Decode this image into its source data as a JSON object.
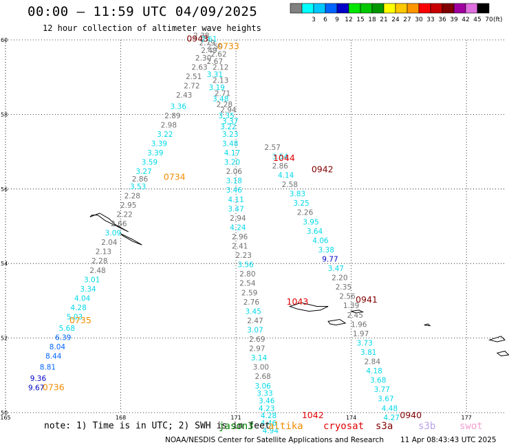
{
  "header": {
    "title": "00:00 – 11:59 UTC 04/09/2025",
    "subtitle": "12 hour collection of altimeter wave heights"
  },
  "colorbar": {
    "unit": "(ft)",
    "bins": [
      {
        "label": "",
        "color": "#808080"
      },
      {
        "label": "3",
        "color": "#00ffff"
      },
      {
        "label": "6",
        "color": "#00c8ff"
      },
      {
        "label": "9",
        "color": "#0064ff"
      },
      {
        "label": "12",
        "color": "#0000c8"
      },
      {
        "label": "15",
        "color": "#00e600"
      },
      {
        "label": "18",
        "color": "#00c800"
      },
      {
        "label": "21",
        "color": "#009600"
      },
      {
        "label": "24",
        "color": "#ffff00"
      },
      {
        "label": "27",
        "color": "#ffc800"
      },
      {
        "label": "30",
        "color": "#ff9600"
      },
      {
        "label": "33",
        "color": "#ff0000"
      },
      {
        "label": "36",
        "color": "#c80000"
      },
      {
        "label": "39",
        "color": "#800000"
      },
      {
        "label": "42",
        "color": "#a000a0"
      },
      {
        "label": "45",
        "color": "#e070e0"
      },
      {
        "label": "70",
        "color": "#000000"
      }
    ]
  },
  "map": {
    "lon_range": [
      165,
      178
    ],
    "lat_range": [
      50,
      60
    ],
    "lon_ticks": [
      "165",
      "168",
      "171",
      "174",
      "177"
    ],
    "lat_ticks": [
      "60",
      "58",
      "56",
      "54",
      "52",
      "50"
    ]
  },
  "colors": {
    "gray": "#707070",
    "cyan": "#00d8e8",
    "blue": "#0064ff",
    "navy": "#0000c8",
    "orange": "#f08c00",
    "darkred": "#800000",
    "red": "#e00000"
  },
  "tracks": [
    {
      "id": "track-0734",
      "points": [
        {
          "lon": 165.8,
          "lat": 50.6,
          "v": "9.67",
          "c": "navy"
        },
        {
          "lon": 165.85,
          "lat": 50.85,
          "v": "9.36",
          "c": "navy"
        },
        {
          "lon": 166.1,
          "lat": 51.15,
          "v": "8.81",
          "c": "blue"
        },
        {
          "lon": 166.25,
          "lat": 51.45,
          "v": "8.44",
          "c": "blue"
        },
        {
          "lon": 166.35,
          "lat": 51.7,
          "v": "8.04",
          "c": "blue"
        },
        {
          "lon": 166.5,
          "lat": 51.95,
          "v": "6.39",
          "c": "blue"
        },
        {
          "lon": 166.6,
          "lat": 52.2,
          "v": "5.68",
          "c": "cyan"
        },
        {
          "lon": 166.8,
          "lat": 52.5,
          "v": "5.03",
          "c": "cyan"
        },
        {
          "lon": 166.9,
          "lat": 52.75,
          "v": "4.28",
          "c": "cyan"
        },
        {
          "lon": 167.0,
          "lat": 53.0,
          "v": "4.04",
          "c": "cyan"
        },
        {
          "lon": 167.15,
          "lat": 53.25,
          "v": "3.34",
          "c": "cyan"
        },
        {
          "lon": 167.25,
          "lat": 53.5,
          "v": "3.01",
          "c": "cyan"
        },
        {
          "lon": 167.4,
          "lat": 53.75,
          "v": "2.48",
          "c": "gray"
        },
        {
          "lon": 167.45,
          "lat": 54.0,
          "v": "2.28",
          "c": "gray"
        },
        {
          "lon": 167.55,
          "lat": 54.25,
          "v": "2.13",
          "c": "gray"
        },
        {
          "lon": 167.7,
          "lat": 54.5,
          "v": "2.04",
          "c": "gray"
        },
        {
          "lon": 167.8,
          "lat": 54.75,
          "v": "3.09",
          "c": "cyan"
        },
        {
          "lon": 167.95,
          "lat": 55.0,
          "v": "2.66",
          "c": "gray"
        },
        {
          "lon": 168.1,
          "lat": 55.25,
          "v": "2.22",
          "c": "gray"
        },
        {
          "lon": 168.2,
          "lat": 55.5,
          "v": "2.95",
          "c": "gray"
        },
        {
          "lon": 168.3,
          "lat": 55.75,
          "v": "2.28",
          "c": "gray"
        },
        {
          "lon": 168.45,
          "lat": 56.0,
          "v": "3.53",
          "c": "cyan"
        },
        {
          "lon": 168.5,
          "lat": 56.2,
          "v": "2.86",
          "c": "gray"
        },
        {
          "lon": 168.6,
          "lat": 56.4,
          "v": "3.27",
          "c": "cyan"
        },
        {
          "lon": 168.75,
          "lat": 56.65,
          "v": "3.59",
          "c": "cyan"
        },
        {
          "lon": 168.9,
          "lat": 56.9,
          "v": "3.39",
          "c": "cyan"
        },
        {
          "lon": 169.0,
          "lat": 57.15,
          "v": "3.39",
          "c": "cyan"
        },
        {
          "lon": 169.15,
          "lat": 57.4,
          "v": "3.22",
          "c": "cyan"
        },
        {
          "lon": 169.25,
          "lat": 57.65,
          "v": "2.98",
          "c": "gray"
        },
        {
          "lon": 169.35,
          "lat": 57.9,
          "v": "2.89",
          "c": "gray"
        },
        {
          "lon": 169.5,
          "lat": 58.15,
          "v": "3.36",
          "c": "cyan"
        },
        {
          "lon": 169.65,
          "lat": 58.45,
          "v": "2.43",
          "c": "gray"
        },
        {
          "lon": 169.85,
          "lat": 58.7,
          "v": "2.72",
          "c": "gray"
        },
        {
          "lon": 169.9,
          "lat": 58.95,
          "v": "2.51",
          "c": "gray"
        },
        {
          "lon": 170.05,
          "lat": 59.2,
          "v": "2.63",
          "c": "gray"
        },
        {
          "lon": 170.15,
          "lat": 59.45,
          "v": "2.30",
          "c": "gray"
        },
        {
          "lon": 170.3,
          "lat": 59.65,
          "v": "2.49",
          "c": "gray"
        },
        {
          "lon": 170.25,
          "lat": 59.85,
          "v": "2.79",
          "c": "gray"
        },
        {
          "lon": 170.1,
          "lat": 60.05,
          "v": "2.38",
          "c": "gray"
        }
      ]
    },
    {
      "id": "track-0733",
      "points": [
        {
          "lon": 170.3,
          "lat": 59.95,
          "v": "2.61",
          "c": "cyan"
        },
        {
          "lon": 170.45,
          "lat": 59.75,
          "v": "2.59",
          "c": "gray"
        },
        {
          "lon": 170.55,
          "lat": 59.55,
          "v": "2.62",
          "c": "gray"
        },
        {
          "lon": 170.45,
          "lat": 59.35,
          "v": "2.67",
          "c": "gray"
        },
        {
          "lon": 170.6,
          "lat": 59.2,
          "v": "2.12",
          "c": "gray"
        },
        {
          "lon": 170.45,
          "lat": 59.0,
          "v": "3.31",
          "c": "cyan"
        },
        {
          "lon": 170.6,
          "lat": 58.85,
          "v": "2.13",
          "c": "gray"
        },
        {
          "lon": 170.5,
          "lat": 58.65,
          "v": "3.19",
          "c": "cyan"
        },
        {
          "lon": 170.65,
          "lat": 58.5,
          "v": "2.71",
          "c": "gray"
        },
        {
          "lon": 170.6,
          "lat": 58.35,
          "v": "3.48",
          "c": "cyan"
        },
        {
          "lon": 170.7,
          "lat": 58.2,
          "v": "2.28",
          "c": "gray"
        },
        {
          "lon": 170.8,
          "lat": 58.05,
          "v": "2.94",
          "c": "gray"
        },
        {
          "lon": 170.75,
          "lat": 57.9,
          "v": "3.35",
          "c": "cyan"
        },
        {
          "lon": 170.85,
          "lat": 57.75,
          "v": "3.37",
          "c": "cyan"
        },
        {
          "lon": 170.8,
          "lat": 57.6,
          "v": "3.22",
          "c": "cyan"
        },
        {
          "lon": 170.85,
          "lat": 57.4,
          "v": "3.23",
          "c": "cyan"
        },
        {
          "lon": 170.85,
          "lat": 57.15,
          "v": "3.48",
          "c": "cyan"
        },
        {
          "lon": 170.9,
          "lat": 56.9,
          "v": "4.17",
          "c": "cyan"
        },
        {
          "lon": 170.9,
          "lat": 56.65,
          "v": "3.20",
          "c": "cyan"
        },
        {
          "lon": 170.95,
          "lat": 56.4,
          "v": "2.06",
          "c": "gray"
        },
        {
          "lon": 170.95,
          "lat": 56.15,
          "v": "3.18",
          "c": "cyan"
        },
        {
          "lon": 170.95,
          "lat": 55.9,
          "v": "3.46",
          "c": "cyan"
        },
        {
          "lon": 171.0,
          "lat": 55.65,
          "v": "4.11",
          "c": "cyan"
        },
        {
          "lon": 171.0,
          "lat": 55.4,
          "v": "3.47",
          "c": "cyan"
        },
        {
          "lon": 171.05,
          "lat": 55.15,
          "v": "2.94",
          "c": "gray"
        },
        {
          "lon": 171.05,
          "lat": 54.9,
          "v": "4.24",
          "c": "cyan"
        },
        {
          "lon": 171.1,
          "lat": 54.65,
          "v": "2.96",
          "c": "gray"
        },
        {
          "lon": 171.1,
          "lat": 54.4,
          "v": "2.41",
          "c": "gray"
        },
        {
          "lon": 171.2,
          "lat": 54.15,
          "v": "2.23",
          "c": "gray"
        },
        {
          "lon": 171.25,
          "lat": 53.9,
          "v": "3.56",
          "c": "cyan"
        },
        {
          "lon": 171.3,
          "lat": 53.65,
          "v": "2.80",
          "c": "gray"
        },
        {
          "lon": 171.3,
          "lat": 53.4,
          "v": "2.54",
          "c": "gray"
        },
        {
          "lon": 171.35,
          "lat": 53.15,
          "v": "2.59",
          "c": "gray"
        },
        {
          "lon": 171.4,
          "lat": 52.9,
          "v": "2.76",
          "c": "gray"
        },
        {
          "lon": 171.45,
          "lat": 52.65,
          "v": "3.45",
          "c": "cyan"
        },
        {
          "lon": 171.5,
          "lat": 52.4,
          "v": "2.47",
          "c": "gray"
        },
        {
          "lon": 171.5,
          "lat": 52.15,
          "v": "3.07",
          "c": "cyan"
        },
        {
          "lon": 171.55,
          "lat": 51.9,
          "v": "2.69",
          "c": "gray"
        },
        {
          "lon": 171.55,
          "lat": 51.65,
          "v": "2.97",
          "c": "gray"
        },
        {
          "lon": 171.6,
          "lat": 51.4,
          "v": "3.14",
          "c": "cyan"
        },
        {
          "lon": 171.65,
          "lat": 51.15,
          "v": "3.00",
          "c": "gray"
        },
        {
          "lon": 171.7,
          "lat": 50.9,
          "v": "2.68",
          "c": "gray"
        },
        {
          "lon": 171.7,
          "lat": 50.65,
          "v": "3.06",
          "c": "cyan"
        },
        {
          "lon": 171.75,
          "lat": 50.45,
          "v": "3.33",
          "c": "cyan"
        },
        {
          "lon": 171.8,
          "lat": 50.25,
          "v": "3.46",
          "c": "cyan"
        },
        {
          "lon": 171.8,
          "lat": 50.05,
          "v": "4.23",
          "c": "cyan"
        },
        {
          "lon": 171.85,
          "lat": 49.85,
          "v": "4.28",
          "c": "cyan"
        },
        {
          "lon": 171.85,
          "lat": 49.65,
          "v": "4.46",
          "c": "cyan"
        },
        {
          "lon": 171.9,
          "lat": 49.45,
          "v": "4.94",
          "c": "cyan"
        }
      ]
    },
    {
      "id": "track-0942",
      "points": [
        {
          "lon": 171.95,
          "lat": 57.05,
          "v": "2.57",
          "c": "gray"
        },
        {
          "lon": 172.15,
          "lat": 56.8,
          "v": "3.54",
          "c": "cyan"
        },
        {
          "lon": 172.15,
          "lat": 56.55,
          "v": "2.86",
          "c": "gray"
        },
        {
          "lon": 172.3,
          "lat": 56.3,
          "v": "4.14",
          "c": "cyan"
        },
        {
          "lon": 172.4,
          "lat": 56.05,
          "v": "2.58",
          "c": "gray"
        },
        {
          "lon": 172.6,
          "lat": 55.8,
          "v": "3.83",
          "c": "cyan"
        },
        {
          "lon": 172.7,
          "lat": 55.55,
          "v": "3.25",
          "c": "cyan"
        },
        {
          "lon": 172.8,
          "lat": 55.3,
          "v": "2.26",
          "c": "gray"
        },
        {
          "lon": 172.95,
          "lat": 55.05,
          "v": "3.95",
          "c": "cyan"
        },
        {
          "lon": 173.05,
          "lat": 54.8,
          "v": "3.64",
          "c": "cyan"
        },
        {
          "lon": 173.2,
          "lat": 54.55,
          "v": "4.06",
          "c": "cyan"
        },
        {
          "lon": 173.35,
          "lat": 54.3,
          "v": "3.38",
          "c": "cyan"
        },
        {
          "lon": 173.45,
          "lat": 54.05,
          "v": "9.77",
          "c": "navy"
        },
        {
          "lon": 173.6,
          "lat": 53.8,
          "v": "3.47",
          "c": "cyan"
        },
        {
          "lon": 173.7,
          "lat": 53.55,
          "v": "2.20",
          "c": "gray"
        },
        {
          "lon": 173.8,
          "lat": 53.3,
          "v": "2.35",
          "c": "gray"
        },
        {
          "lon": 173.9,
          "lat": 53.05,
          "v": "2.56",
          "c": "gray"
        },
        {
          "lon": 174.0,
          "lat": 52.8,
          "v": "1.39",
          "c": "gray"
        },
        {
          "lon": 174.1,
          "lat": 52.55,
          "v": "2.45",
          "c": "gray"
        },
        {
          "lon": 174.2,
          "lat": 52.3,
          "v": "1.96",
          "c": "gray"
        },
        {
          "lon": 174.25,
          "lat": 52.05,
          "v": "1.97",
          "c": "gray"
        },
        {
          "lon": 174.35,
          "lat": 51.8,
          "v": "3.73",
          "c": "cyan"
        },
        {
          "lon": 174.45,
          "lat": 51.55,
          "v": "3.81",
          "c": "cyan"
        },
        {
          "lon": 174.55,
          "lat": 51.3,
          "v": "2.84",
          "c": "gray"
        },
        {
          "lon": 174.6,
          "lat": 51.05,
          "v": "4.18",
          "c": "cyan"
        },
        {
          "lon": 174.7,
          "lat": 50.8,
          "v": "3.68",
          "c": "cyan"
        },
        {
          "lon": 174.8,
          "lat": 50.55,
          "v": "3.77",
          "c": "cyan"
        },
        {
          "lon": 174.9,
          "lat": 50.3,
          "v": "3.67",
          "c": "cyan"
        },
        {
          "lon": 175.0,
          "lat": 50.05,
          "v": "4.48",
          "c": "cyan"
        },
        {
          "lon": 175.05,
          "lat": 49.8,
          "v": "4.27",
          "c": "cyan"
        },
        {
          "lon": 174.4,
          "lat": 52.45,
          "v": "",
          "c": "gray"
        }
      ]
    }
  ],
  "pass_labels": [
    {
      "lon": 170.0,
      "lat": 59.95,
      "text": "0943",
      "c": "darkred"
    },
    {
      "lon": 170.8,
      "lat": 59.75,
      "text": "0733",
      "c": "orange"
    },
    {
      "lon": 169.4,
      "lat": 56.25,
      "text": "0734",
      "c": "orange"
    },
    {
      "lon": 172.25,
      "lat": 56.75,
      "text": "1044",
      "c": "red"
    },
    {
      "lon": 173.25,
      "lat": 56.45,
      "text": "0942",
      "c": "darkred"
    },
    {
      "lon": 172.6,
      "lat": 52.9,
      "text": "1043",
      "c": "red"
    },
    {
      "lon": 174.4,
      "lat": 52.95,
      "text": "0941",
      "c": "darkred"
    },
    {
      "lon": 166.95,
      "lat": 52.4,
      "text": "0735",
      "c": "orange"
    },
    {
      "lon": 166.25,
      "lat": 50.6,
      "text": "0736",
      "c": "orange"
    },
    {
      "lon": 173.0,
      "lat": 49.85,
      "text": "1042",
      "c": "red"
    },
    {
      "lon": 175.55,
      "lat": 49.85,
      "text": "0940",
      "c": "darkred"
    }
  ],
  "footer": {
    "note": "note: 1) Time is in UTC; 2) SWH is in feet",
    "credit": "NOAA/NESDIS Center for Satellite Applications and Research",
    "stamp": "11 Apr 08:43:43 UTC 2025",
    "satellites": [
      {
        "name": "jason3",
        "color": "#008000"
      },
      {
        "name": "altika",
        "color": "#f08c00"
      },
      {
        "name": "cryosat",
        "color": "#e00000"
      },
      {
        "name": "s3a",
        "color": "#800000"
      },
      {
        "name": "s3b",
        "color": "#b8a0e8"
      },
      {
        "name": "swot",
        "color": "#f0a0d0"
      }
    ]
  }
}
